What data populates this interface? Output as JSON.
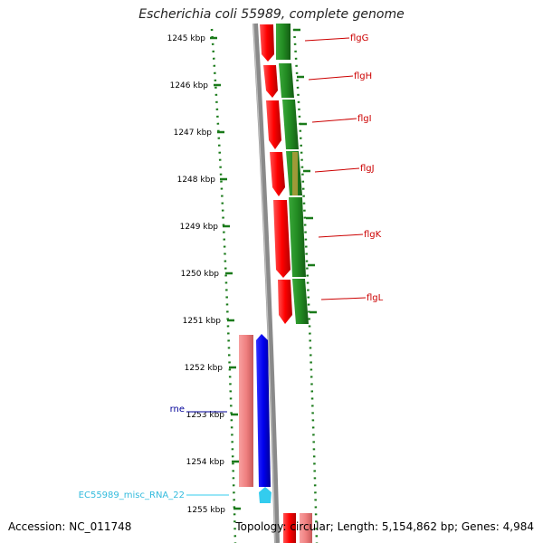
{
  "viewer": {
    "title": "Escherichia coli 55989, complete genome",
    "accession": "Accession: NC_011748",
    "summary": "Topology: circular; Length: 5,154,862 bp; Genes: 4,984"
  },
  "ruler": {
    "ticks": [
      "1245 kbp",
      "1246 kbp",
      "1247 kbp",
      "1248 kbp",
      "1249 kbp",
      "1250 kbp",
      "1251 kbp",
      "1252 kbp",
      "1253 kbp",
      "1254 kbp",
      "1255 kbp"
    ]
  },
  "genes": [
    {
      "label": "flgG",
      "color": "#cc0000"
    },
    {
      "label": "flgH",
      "color": "#cc0000"
    },
    {
      "label": "flgI",
      "color": "#cc0000"
    },
    {
      "label": "flgJ",
      "color": "#cc0000"
    },
    {
      "label": "flgK",
      "color": "#cc0000"
    },
    {
      "label": "flgL",
      "color": "#cc0000"
    },
    {
      "label": "rne",
      "color": "#000099"
    },
    {
      "label": "EC55989_misc_RNA_22",
      "color": "#33ccee"
    }
  ],
  "colors": {
    "forward_cds": "#ff0000",
    "reverse_cds": "#228b22",
    "rne_cds": "#0000ee",
    "pseudo": "#f08080",
    "misc_rna": "#33ccee",
    "backbone": "#888888"
  }
}
